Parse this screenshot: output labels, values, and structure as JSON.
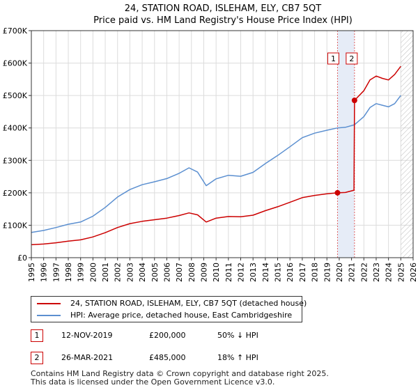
{
  "chart_data": {
    "type": "line",
    "title": "24, STATION ROAD, ISLEHAM, ELY, CB7 5QT",
    "subtitle": "Price paid vs. HM Land Registry's House Price Index (HPI)",
    "xlabel": "",
    "ylabel": "",
    "xlim": [
      1995,
      2026
    ],
    "ylim": [
      0,
      700000
    ],
    "x_ticks": [
      1995,
      1996,
      1997,
      1998,
      1999,
      2000,
      2001,
      2002,
      2003,
      2004,
      2005,
      2006,
      2007,
      2008,
      2009,
      2010,
      2011,
      2012,
      2013,
      2014,
      2015,
      2016,
      2017,
      2018,
      2019,
      2020,
      2021,
      2022,
      2023,
      2024,
      2025,
      2026
    ],
    "y_ticks": [
      0,
      100000,
      200000,
      300000,
      400000,
      500000,
      600000,
      700000
    ],
    "y_tick_labels": [
      "£0",
      "£100K",
      "£200K",
      "£300K",
      "£400K",
      "£500K",
      "£600K",
      "£700K"
    ],
    "grid": true,
    "series": [
      {
        "name": "24, STATION ROAD, ISLEHAM, ELY, CB7 5QT (detached house)",
        "color": "#cc0000",
        "x": [
          1995.0,
          1996.0,
          1997.0,
          1998.0,
          1999.0,
          2000.0,
          2001.0,
          2002.0,
          2003.0,
          2004.0,
          2005.0,
          2006.0,
          2007.0,
          2007.8,
          2008.5,
          2009.2,
          2010.0,
          2011.0,
          2012.0,
          2013.0,
          2014.0,
          2015.0,
          2016.0,
          2017.0,
          2018.0,
          2019.0,
          2019.86,
          2020.5,
          2021.2,
          2021.24,
          2022.0,
          2022.5,
          2023.0,
          2023.5,
          2024.0,
          2024.5,
          2025.0
        ],
        "y": [
          40000,
          42000,
          46000,
          51000,
          55000,
          64000,
          77000,
          93000,
          105000,
          112000,
          117000,
          122000,
          130000,
          138000,
          132000,
          110000,
          122000,
          127000,
          126000,
          131000,
          145000,
          157000,
          171000,
          185000,
          192000,
          197000,
          200000,
          201000,
          208000,
          485000,
          515000,
          548000,
          560000,
          553000,
          548000,
          565000,
          590000
        ]
      },
      {
        "name": "HPI: Average price, detached house, East Cambridgeshire",
        "color": "#5b8fd0",
        "x": [
          1995.0,
          1996.0,
          1997.0,
          1998.0,
          1999.0,
          2000.0,
          2001.0,
          2002.0,
          2003.0,
          2004.0,
          2005.0,
          2006.0,
          2007.0,
          2007.8,
          2008.5,
          2009.2,
          2010.0,
          2011.0,
          2012.0,
          2013.0,
          2014.0,
          2015.0,
          2016.0,
          2017.0,
          2018.0,
          2019.0,
          2019.86,
          2020.5,
          2021.24,
          2022.0,
          2022.5,
          2023.0,
          2023.5,
          2024.0,
          2024.5,
          2025.0
        ],
        "y": [
          78000,
          84000,
          93000,
          103000,
          110000,
          128000,
          155000,
          187000,
          210000,
          225000,
          234000,
          244000,
          260000,
          277000,
          264000,
          222000,
          243000,
          254000,
          251000,
          263000,
          290000,
          315000,
          342000,
          370000,
          384000,
          393000,
          400000,
          402000,
          410000,
          435000,
          463000,
          475000,
          470000,
          465000,
          475000,
          500000
        ]
      }
    ],
    "annotations": [
      {
        "label": "1",
        "x": 2019.86,
        "y": 200000
      },
      {
        "label": "2",
        "x": 2021.24,
        "y": 485000
      }
    ],
    "shaded_region": [
      2019.86,
      2021.24
    ],
    "hatched_from": 2025.0
  },
  "legend": {
    "property_label": "24, STATION ROAD, ISLEHAM, ELY, CB7 5QT (detached house)",
    "hpi_label": "HPI: Average price, detached house, East Cambridgeshire",
    "property_color": "#cc0000",
    "hpi_color": "#5b8fd0"
  },
  "sales": [
    {
      "num": "1",
      "date": "12-NOV-2019",
      "price": "£200,000",
      "hpi": "50% ↓ HPI"
    },
    {
      "num": "2",
      "date": "26-MAR-2021",
      "price": "£485,000",
      "hpi": "18% ↑ HPI"
    }
  ],
  "footer": {
    "line1": "Contains HM Land Registry data © Crown copyright and database right 2025.",
    "line2": "This data is licensed under the Open Government Licence v3.0."
  }
}
